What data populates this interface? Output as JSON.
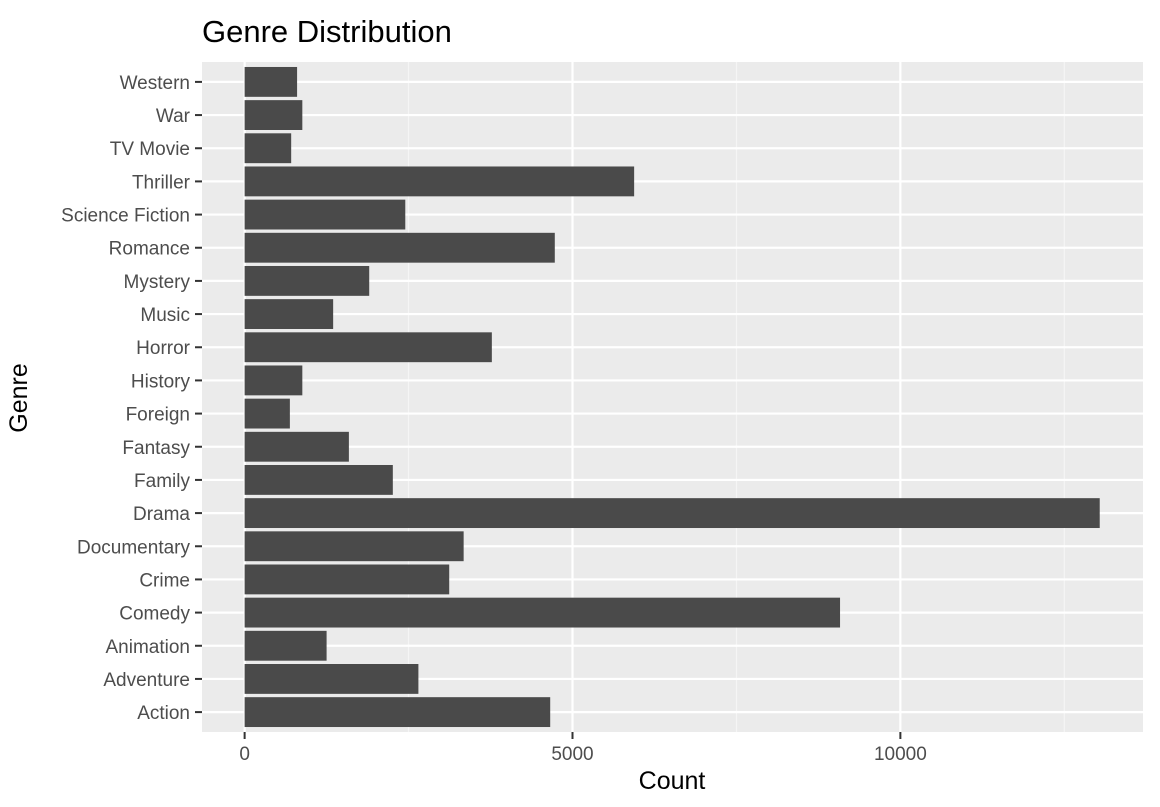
{
  "chart_data": {
    "type": "bar",
    "orientation": "horizontal",
    "title": "Genre Distribution",
    "xlabel": "Count",
    "ylabel": "Genre",
    "xlim": [
      -650,
      13700
    ],
    "xticks": [
      0,
      5000,
      10000
    ],
    "grid": true,
    "legend": "none",
    "categories": [
      "Action",
      "Adventure",
      "Animation",
      "Comedy",
      "Crime",
      "Documentary",
      "Drama",
      "Family",
      "Fantasy",
      "Foreign",
      "History",
      "Horror",
      "Music",
      "Mystery",
      "Romance",
      "Science Fiction",
      "Thriller",
      "TV Movie",
      "War",
      "Western"
    ],
    "values": [
      4660,
      2650,
      1250,
      9080,
      3120,
      3340,
      13040,
      2260,
      1590,
      690,
      880,
      3770,
      1350,
      1900,
      4730,
      2450,
      5940,
      710,
      880,
      800
    ]
  },
  "colors": {
    "panel": "#ebebeb",
    "grid_major": "#ffffff",
    "grid_minor": "#f5f5f5",
    "bar": "#4a4a4a",
    "tick": "#333333"
  }
}
